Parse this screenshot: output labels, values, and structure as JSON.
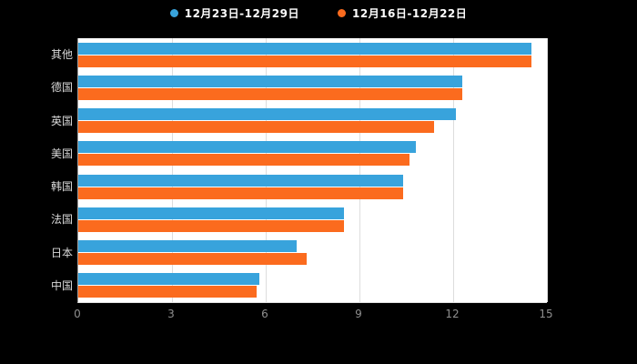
{
  "chart_data": {
    "type": "bar",
    "orientation": "horizontal",
    "title": "",
    "xlabel": "",
    "ylabel": "",
    "categories": [
      "其他",
      "德国",
      "英国",
      "美国",
      "韩国",
      "法国",
      "日本",
      "中国"
    ],
    "series": [
      {
        "name": "12月23日-12月29日",
        "color": "#38A3DC",
        "values": [
          14.5,
          12.3,
          12.1,
          10.8,
          10.4,
          8.5,
          7.0,
          5.8
        ]
      },
      {
        "name": "12月16日-12月22日",
        "color": "#FB6B1E",
        "values": [
          14.5,
          12.3,
          11.4,
          10.6,
          10.4,
          8.5,
          7.3,
          5.7
        ]
      }
    ],
    "xlim": [
      0,
      15
    ],
    "xticks": [
      0,
      3,
      6,
      9,
      12,
      15
    ],
    "grid": true,
    "legend_position": "top",
    "background": "#000000",
    "plot_background": "#ffffff"
  }
}
